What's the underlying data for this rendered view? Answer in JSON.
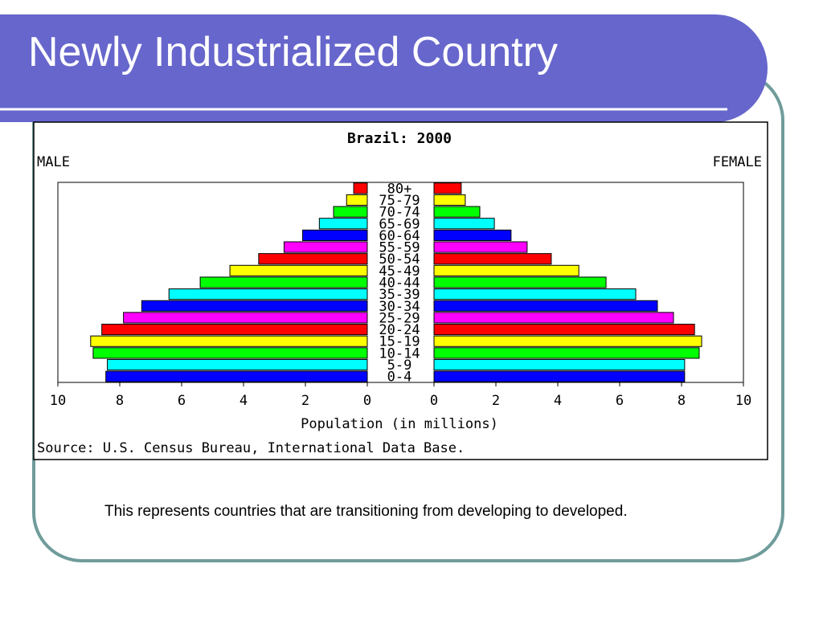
{
  "header": {
    "title": "Newly Industrialized Country"
  },
  "chart_data": {
    "type": "pyramid",
    "title": "Brazil: 2000",
    "categories": [
      "80+",
      "75-79",
      "70-74",
      "65-69",
      "60-64",
      "55-59",
      "50-54",
      "45-49",
      "40-44",
      "35-39",
      "30-34",
      "25-29",
      "20-24",
      "15-19",
      "10-14",
      "5-9",
      "0-4"
    ],
    "colors": [
      "#ff0000",
      "#ffff00",
      "#00ff00",
      "#00ffff",
      "#0000ff",
      "#ff00ff",
      "#ff0000",
      "#ffff00",
      "#00ff00",
      "#00ffff",
      "#0000ff",
      "#ff00ff",
      "#ff0000",
      "#ffff00",
      "#00ff00",
      "#00ffff",
      "#0000ff"
    ],
    "series": [
      {
        "name": "MALE",
        "values": [
          0.44,
          0.67,
          1.09,
          1.55,
          2.09,
          2.69,
          3.51,
          4.44,
          5.4,
          6.41,
          7.29,
          7.88,
          8.58,
          8.94,
          8.86,
          8.4,
          8.45
        ]
      },
      {
        "name": "FEMALE",
        "values": [
          0.88,
          1.01,
          1.48,
          1.95,
          2.49,
          3.01,
          3.79,
          4.68,
          5.56,
          6.52,
          7.22,
          7.74,
          8.42,
          8.65,
          8.57,
          8.1,
          8.1
        ]
      }
    ],
    "xlim": [
      0,
      10
    ],
    "xticks": [
      0,
      2,
      4,
      6,
      8,
      10
    ],
    "xlabel": "Population (in millions)",
    "source": "Source: U.S. Census Bureau, International Data Base."
  },
  "caption": "This represents countries that are transitioning from developing to developed."
}
